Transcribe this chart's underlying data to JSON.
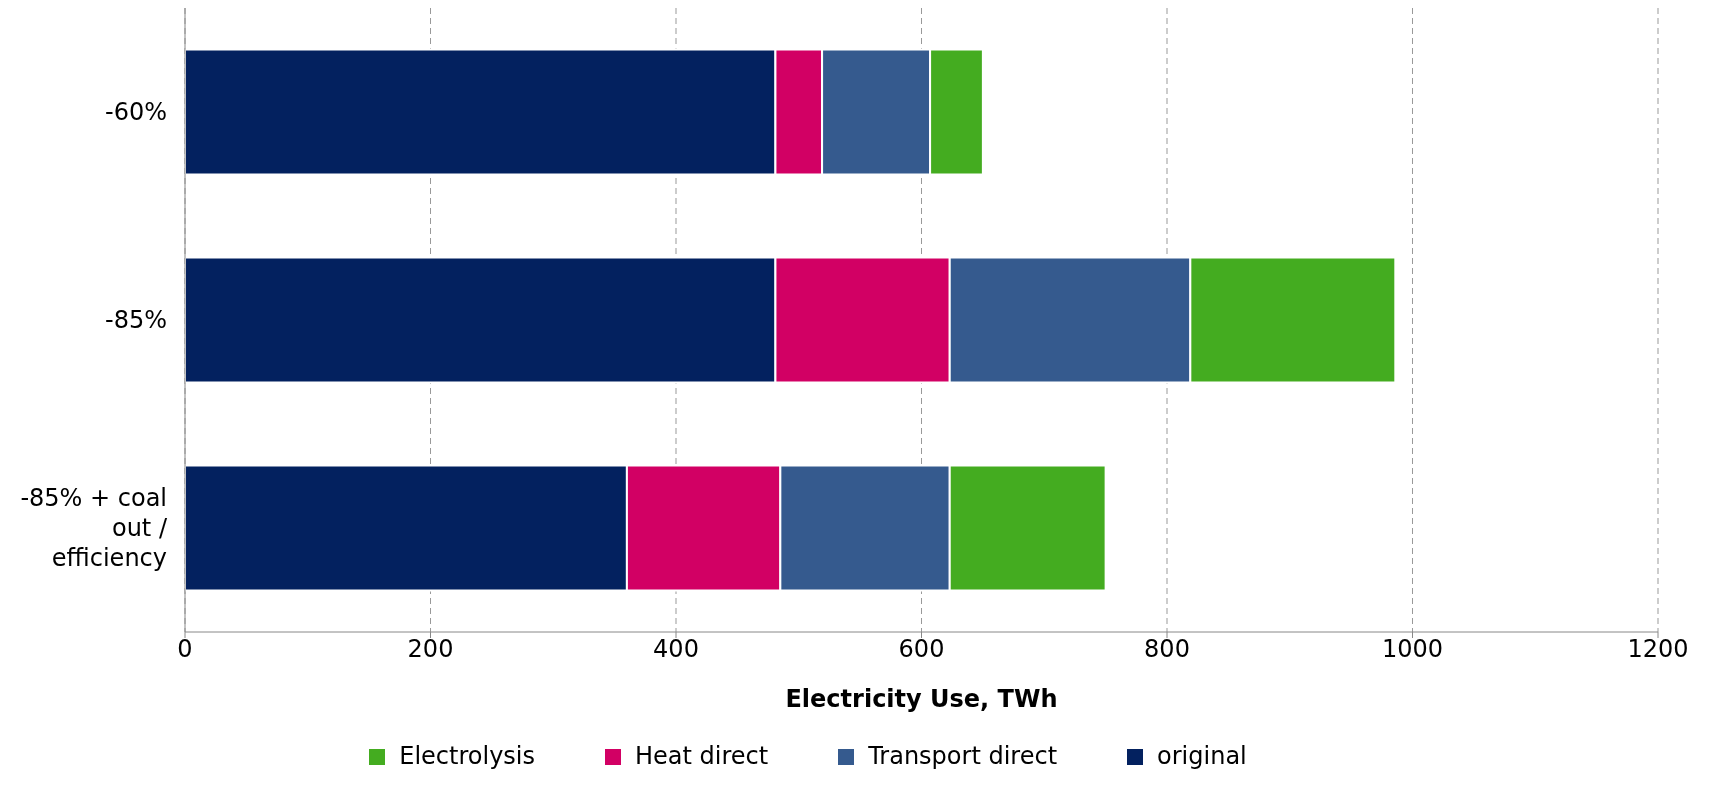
{
  "chart_data": {
    "type": "bar",
    "orientation": "horizontal",
    "stacked": true,
    "categories": [
      "-60%",
      "-85%",
      "-85% + coal out / efficiency"
    ],
    "series": [
      {
        "name": "original",
        "color": "#03215f",
        "values": [
          481,
          481,
          360
        ]
      },
      {
        "name": "Heat direct",
        "color": "#d20064",
        "values": [
          38,
          142,
          125
        ]
      },
      {
        "name": "Transport direct",
        "color": "#355a8e",
        "values": [
          88,
          196,
          138
        ]
      },
      {
        "name": "Electrolysis",
        "color": "#44ac20",
        "values": [
          43,
          167,
          127
        ]
      }
    ],
    "xlabel": "Electricity Use, TWh",
    "xlim": [
      0,
      1200
    ],
    "xticks": [
      0,
      200,
      400,
      600,
      800,
      1000,
      1200
    ],
    "grid": "x",
    "legend": "bottom"
  }
}
